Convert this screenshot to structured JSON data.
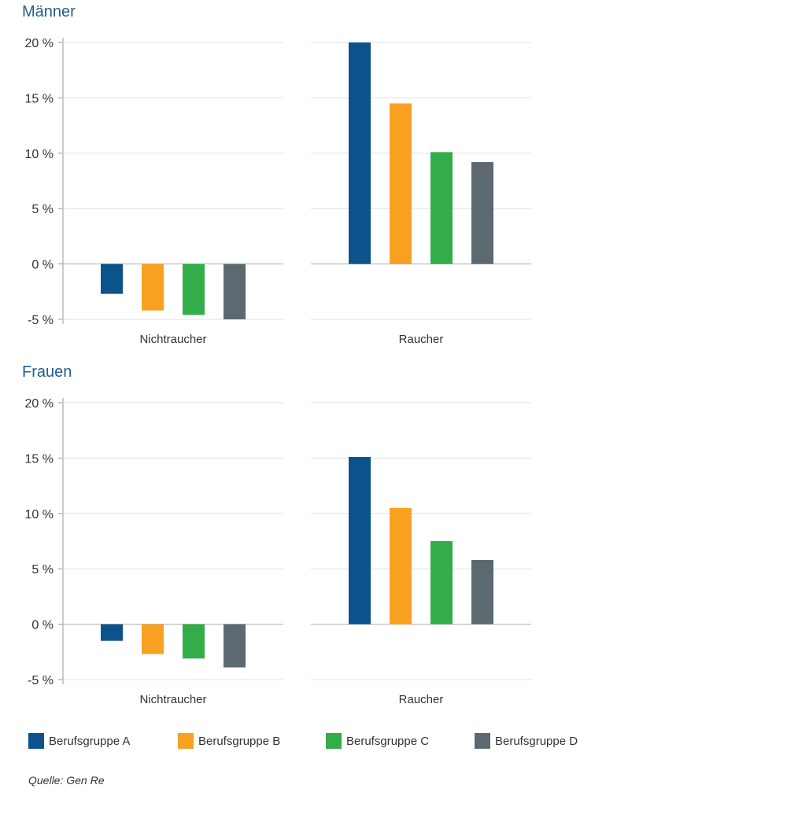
{
  "titles": {
    "men": "Männer",
    "women": "Frauen"
  },
  "source": "Quelle: Gen Re",
  "colors": {
    "Berufsgruppe A": "#0b538a",
    "Berufsgruppe B": "#f8a121",
    "Berufsgruppe C": "#32ad49",
    "Berufsgruppe D": "#5d6970",
    "grid": "#e0e0e0",
    "axis": "#999999"
  },
  "legend": [
    "Berufsgruppe A",
    "Berufsgruppe B",
    "Berufsgruppe C",
    "Berufsgruppe D"
  ],
  "chart_data": [
    {
      "type": "bar",
      "title": "Männer",
      "categories": [
        "Nichtraucher",
        "Raucher"
      ],
      "series": [
        {
          "name": "Berufsgruppe A",
          "values": [
            -2.7,
            20.0
          ]
        },
        {
          "name": "Berufsgruppe B",
          "values": [
            -4.2,
            14.5
          ]
        },
        {
          "name": "Berufsgruppe C",
          "values": [
            -4.6,
            10.1
          ]
        },
        {
          "name": "Berufsgruppe D",
          "values": [
            -5.0,
            9.2
          ]
        }
      ],
      "ylim": [
        -5,
        20
      ],
      "yticks": [
        20,
        15,
        10,
        5,
        0,
        -5
      ],
      "ytick_labels": [
        "20 %",
        "15 %",
        "10 %",
        "5 %",
        "0 %",
        "-5 %"
      ],
      "grid": true,
      "legend_position": "bottom"
    },
    {
      "type": "bar",
      "title": "Frauen",
      "categories": [
        "Nichtraucher",
        "Raucher"
      ],
      "series": [
        {
          "name": "Berufsgruppe A",
          "values": [
            -1.5,
            15.1
          ]
        },
        {
          "name": "Berufsgruppe B",
          "values": [
            -2.7,
            10.5
          ]
        },
        {
          "name": "Berufsgruppe C",
          "values": [
            -3.1,
            7.5
          ]
        },
        {
          "name": "Berufsgruppe D",
          "values": [
            -3.9,
            5.8
          ]
        }
      ],
      "ylim": [
        -5,
        20
      ],
      "yticks": [
        20,
        15,
        10,
        5,
        0,
        -5
      ],
      "ytick_labels": [
        "20 %",
        "15 %",
        "10 %",
        "5 %",
        "0 %",
        "-5 %"
      ],
      "grid": true,
      "legend_position": "bottom"
    }
  ]
}
